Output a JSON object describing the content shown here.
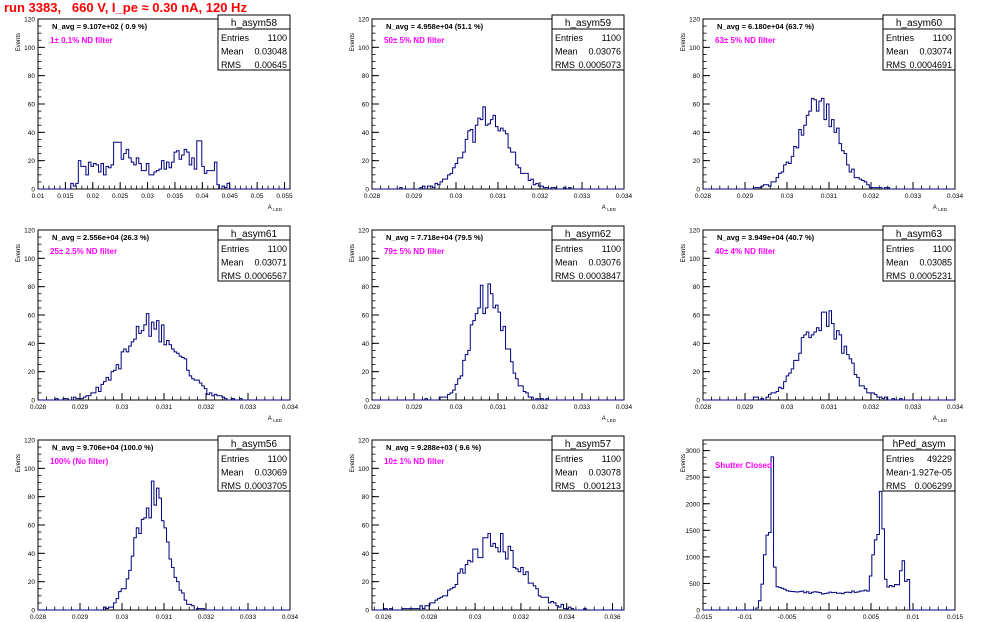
{
  "title": "run 3383,   660 V, I_pe ≈ 0.30 nA, 120 Hz",
  "colors": {
    "title": "#ff0000",
    "hist": "#00007f",
    "annot": "#ff00ff",
    "axis": "#000000"
  },
  "chart_data": [
    {
      "type": "bar",
      "name": "h_asym58",
      "ylabel": "Events",
      "xlabel": "A_LED",
      "xlim": [
        0.01,
        0.056
      ],
      "ylim": [
        0,
        120
      ],
      "xticks": [
        "0.01",
        "0.015",
        "0.02",
        "0.025",
        "0.03",
        "0.035",
        "0.04",
        "0.045",
        "0.05",
        "0.055"
      ],
      "xtick_vals": [
        0.01,
        0.015,
        0.02,
        0.025,
        0.03,
        0.035,
        0.04,
        0.045,
        0.05,
        0.055
      ],
      "yticks": [
        "0",
        "20",
        "40",
        "60",
        "80",
        "100",
        "120"
      ],
      "ytick_vals": [
        0,
        20,
        40,
        60,
        80,
        100,
        120
      ],
      "navg": "N_avg = 9.107e+02 ( 0.9 %)",
      "filter": "1± 0.1% ND filter",
      "stats": {
        "Entries": "1100",
        "Mean": "0.03048",
        "RMS": "0.00645"
      },
      "mean": 0.03048,
      "rms": 0.00645,
      "peak": 35,
      "peak_x": 0.025,
      "shape": "bimodal"
    },
    {
      "type": "bar",
      "name": "h_asym59",
      "ylabel": "Events",
      "xlabel": "A_LED",
      "xlim": [
        0.028,
        0.034
      ],
      "ylim": [
        0,
        120
      ],
      "xticks": [
        "0.028",
        "0.029",
        "0.03",
        "0.031",
        "0.032",
        "0.033",
        "0.034"
      ],
      "xtick_vals": [
        0.028,
        0.029,
        0.03,
        0.031,
        0.032,
        0.033,
        0.034
      ],
      "yticks": [
        "0",
        "20",
        "40",
        "60",
        "80",
        "100",
        "120"
      ],
      "ytick_vals": [
        0,
        20,
        40,
        60,
        80,
        100,
        120
      ],
      "navg": "N_avg = 4.958e+04 (51.1 %)",
      "filter": "50± 5% ND filter",
      "stats": {
        "Entries": "1100",
        "Mean": "0.03076",
        "RMS": "0.0005073"
      },
      "mean": 0.03076,
      "rms": 0.0005073,
      "peak": 51,
      "shape": "gauss"
    },
    {
      "type": "bar",
      "name": "h_asym60",
      "ylabel": "Events",
      "xlabel": "A_LED",
      "xlim": [
        0.028,
        0.034
      ],
      "ylim": [
        0,
        120
      ],
      "xticks": [
        "0.028",
        "0.029",
        "0.03",
        "0.031",
        "0.032",
        "0.033",
        "0.034"
      ],
      "xtick_vals": [
        0.028,
        0.029,
        0.03,
        0.031,
        0.032,
        0.033,
        0.034
      ],
      "yticks": [
        "0",
        "20",
        "40",
        "60",
        "80",
        "100",
        "120"
      ],
      "ytick_vals": [
        0,
        20,
        40,
        60,
        80,
        100,
        120
      ],
      "navg": "N_avg = 6.180e+04 (63.7 %)",
      "filter": "63± 5% ND filter",
      "stats": {
        "Entries": "1100",
        "Mean": "0.03074",
        "RMS": "0.0004691"
      },
      "mean": 0.03074,
      "rms": 0.0004691,
      "peak": 60,
      "shape": "gauss"
    },
    {
      "type": "bar",
      "name": "h_asym61",
      "ylabel": "Events",
      "xlabel": "A_LED",
      "xlim": [
        0.028,
        0.034
      ],
      "ylim": [
        0,
        120
      ],
      "xticks": [
        "0.028",
        "0.029",
        "0.03",
        "0.031",
        "0.032",
        "0.033",
        "0.034"
      ],
      "xtick_vals": [
        0.028,
        0.029,
        0.03,
        0.031,
        0.032,
        0.033,
        0.034
      ],
      "yticks": [
        "0",
        "20",
        "40",
        "60",
        "80",
        "100",
        "120"
      ],
      "ytick_vals": [
        0,
        20,
        40,
        60,
        80,
        100,
        120
      ],
      "navg": "N_avg = 2.556e+04 (26.3 %)",
      "filter": "25± 2.5% ND filter",
      "stats": {
        "Entries": "1100",
        "Mean": "0.03071",
        "RMS": "0.0006567"
      },
      "mean": 0.03071,
      "rms": 0.0006567,
      "peak": 52,
      "shape": "gauss"
    },
    {
      "type": "bar",
      "name": "h_asym62",
      "ylabel": "Events",
      "xlabel": "A_LED",
      "xlim": [
        0.028,
        0.034
      ],
      "ylim": [
        0,
        120
      ],
      "xticks": [
        "0.028",
        "0.029",
        "0.03",
        "0.031",
        "0.032",
        "0.033",
        "0.034"
      ],
      "xtick_vals": [
        0.028,
        0.029,
        0.03,
        0.031,
        0.032,
        0.033,
        0.034
      ],
      "yticks": [
        "0",
        "20",
        "40",
        "60",
        "80",
        "100",
        "120"
      ],
      "ytick_vals": [
        0,
        20,
        40,
        60,
        80,
        100,
        120
      ],
      "navg": "N_avg = 7.718e+04 (79.5 %)",
      "filter": "79± 5% ND filter",
      "stats": {
        "Entries": "1100",
        "Mean": "0.03076",
        "RMS": "0.0003847"
      },
      "mean": 0.03076,
      "rms": 0.0003847,
      "peak": 74,
      "shape": "gauss"
    },
    {
      "type": "bar",
      "name": "h_asym63",
      "ylabel": "Events",
      "xlabel": "A_LED",
      "xlim": [
        0.028,
        0.034
      ],
      "ylim": [
        0,
        120
      ],
      "xticks": [
        "0.028",
        "0.029",
        "0.03",
        "0.031",
        "0.032",
        "0.033",
        "0.034"
      ],
      "xtick_vals": [
        0.028,
        0.029,
        0.03,
        0.031,
        0.032,
        0.033,
        0.034
      ],
      "yticks": [
        "0",
        "20",
        "40",
        "60",
        "80",
        "100",
        "120"
      ],
      "ytick_vals": [
        0,
        20,
        40,
        60,
        80,
        100,
        120
      ],
      "navg": "N_avg = 3.949e+04 (40.7 %)",
      "filter": "40± 4% ND filter",
      "stats": {
        "Entries": "1100",
        "Mean": "0.03085",
        "RMS": "0.0005231"
      },
      "mean": 0.03085,
      "rms": 0.0005231,
      "peak": 60,
      "shape": "gauss"
    },
    {
      "type": "bar",
      "name": "h_asym56",
      "ylabel": "Events",
      "xlabel": "A_LED",
      "xlim": [
        0.028,
        0.034
      ],
      "ylim": [
        0,
        120
      ],
      "xticks": [
        "0.028",
        "0.029",
        "0.03",
        "0.031",
        "0.032",
        "0.033",
        "0.034"
      ],
      "xtick_vals": [
        0.028,
        0.029,
        0.03,
        0.031,
        0.032,
        0.033,
        0.034
      ],
      "yticks": [
        "0",
        "20",
        "40",
        "60",
        "80",
        "100",
        "120"
      ],
      "ytick_vals": [
        0,
        20,
        40,
        60,
        80,
        100,
        120
      ],
      "navg": "N_avg = 9.706e+04 (100.0 %)",
      "filter": "100% (No filter)",
      "stats": {
        "Entries": "1100",
        "Mean": "0.03069",
        "RMS": "0.0003705"
      },
      "mean": 0.03069,
      "rms": 0.0003705,
      "peak": 80,
      "shape": "gauss"
    },
    {
      "type": "bar",
      "name": "h_asym57",
      "ylabel": "Events",
      "xlabel": "A_LED",
      "xlim": [
        0.0255,
        0.0365
      ],
      "ylim": [
        0,
        120
      ],
      "xticks": [
        "0.026",
        "0.028",
        "0.03",
        "0.032",
        "0.034",
        "0.036"
      ],
      "xtick_vals": [
        0.026,
        0.028,
        0.03,
        0.032,
        0.034,
        0.036
      ],
      "yticks": [
        "0",
        "20",
        "40",
        "60",
        "80",
        "100",
        "120"
      ],
      "ytick_vals": [
        0,
        20,
        40,
        60,
        80,
        100,
        120
      ],
      "navg": "N_avg = 9.288e+03 ( 9.6 %)",
      "filter": "10± 1% ND filter",
      "stats": {
        "Entries": "1100",
        "Mean": "0.03078",
        "RMS": "0.001213"
      },
      "mean": 0.03078,
      "rms": 0.001213,
      "peak": 48,
      "shape": "gauss"
    },
    {
      "type": "bar",
      "name": "hPed_asym",
      "ylabel": "Events",
      "xlabel": "A_LED",
      "xlim": [
        -0.015,
        0.015
      ],
      "ylim": [
        0,
        3200
      ],
      "xticks": [
        "-0.015",
        "-0.01",
        "-0.005",
        "0",
        "0.005",
        "0.01",
        "0.015"
      ],
      "xtick_vals": [
        -0.015,
        -0.01,
        -0.005,
        0,
        0.005,
        0.01,
        0.015
      ],
      "yticks": [
        "0",
        "500",
        "1000",
        "1500",
        "2000",
        "2500",
        "3000"
      ],
      "ytick_vals": [
        0,
        500,
        1000,
        1500,
        2000,
        2500,
        3000
      ],
      "navg": "",
      "filter": "Shutter Closed",
      "stats": {
        "Entries": "49229",
        "Mean": "-1.927e-05",
        "RMS": "0.006299"
      },
      "mean": -1.927e-05,
      "rms": 0.006299,
      "peak": 3000,
      "shape": "ped"
    }
  ]
}
